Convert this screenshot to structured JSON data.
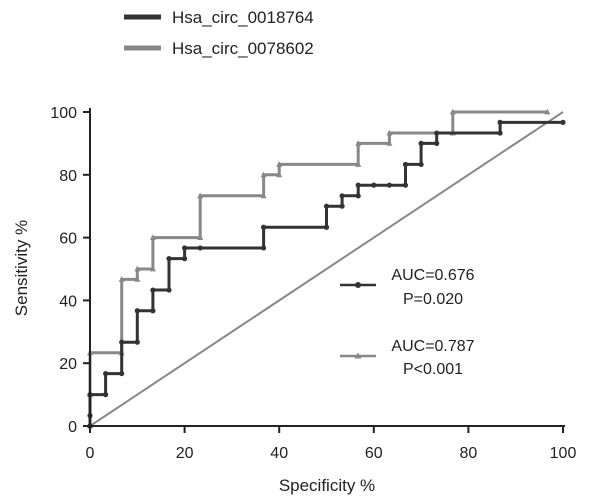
{
  "chart_data": {
    "type": "line",
    "title": "",
    "xlabel": "Specificity %",
    "ylabel": "Sensitivity %",
    "xlim": [
      0,
      100
    ],
    "ylim": [
      0,
      100
    ],
    "x_ticks": [
      "0",
      "20",
      "40",
      "60",
      "80",
      "100"
    ],
    "y_ticks": [
      "0",
      "20",
      "40",
      "60",
      "80",
      "100"
    ],
    "grid": false,
    "legend_position": "top-left, above plot",
    "series": [
      {
        "name": "Hsa_circ_0018764",
        "color": "#333333",
        "marker": "circle",
        "x": [
          0,
          0,
          0,
          3.3,
          3.3,
          6.7,
          6.7,
          10,
          10,
          13.3,
          13.3,
          16.7,
          16.7,
          20,
          20,
          23.3,
          36.7,
          36.7,
          50,
          50,
          53.3,
          53.3,
          56.7,
          56.7,
          60,
          63.3,
          66.7,
          66.7,
          70,
          70,
          73.3,
          73.3,
          86.7,
          86.7,
          100
        ],
        "y": [
          0,
          3.3,
          10,
          10,
          16.7,
          16.7,
          26.7,
          26.7,
          36.7,
          36.7,
          43.3,
          43.3,
          53.3,
          53.3,
          56.7,
          56.7,
          56.7,
          63.3,
          63.3,
          70,
          70,
          73.3,
          73.3,
          76.7,
          76.7,
          76.7,
          76.7,
          83.3,
          83.3,
          90,
          90,
          93.3,
          93.3,
          96.7,
          96.7
        ]
      },
      {
        "name": "Hsa_circ_0078602",
        "color": "#888888",
        "marker": "triangle",
        "x": [
          0,
          0,
          0,
          6.7,
          6.7,
          10,
          10,
          13.3,
          13.3,
          23.3,
          23.3,
          36.7,
          36.7,
          40,
          40,
          56.7,
          56.7,
          63.3,
          63.3,
          76.7,
          76.7,
          96.7
        ],
        "y": [
          0,
          10,
          23.3,
          23.3,
          46.7,
          46.7,
          50,
          50,
          60,
          60,
          73.3,
          73.3,
          80,
          80,
          83.3,
          83.3,
          90,
          90,
          93.3,
          93.3,
          100,
          100
        ]
      },
      {
        "name": "",
        "color": "#888888",
        "marker": "none",
        "x": [
          0,
          100
        ],
        "y": [
          0,
          100
        ]
      }
    ],
    "annotations": [
      {
        "series": "Hsa_circ_0018764",
        "line1": "AUC=0.676",
        "line2": "P=0.020"
      },
      {
        "series": "Hsa_circ_0078602",
        "line1": "AUC=0.787",
        "line2": "P<0.001"
      }
    ]
  }
}
